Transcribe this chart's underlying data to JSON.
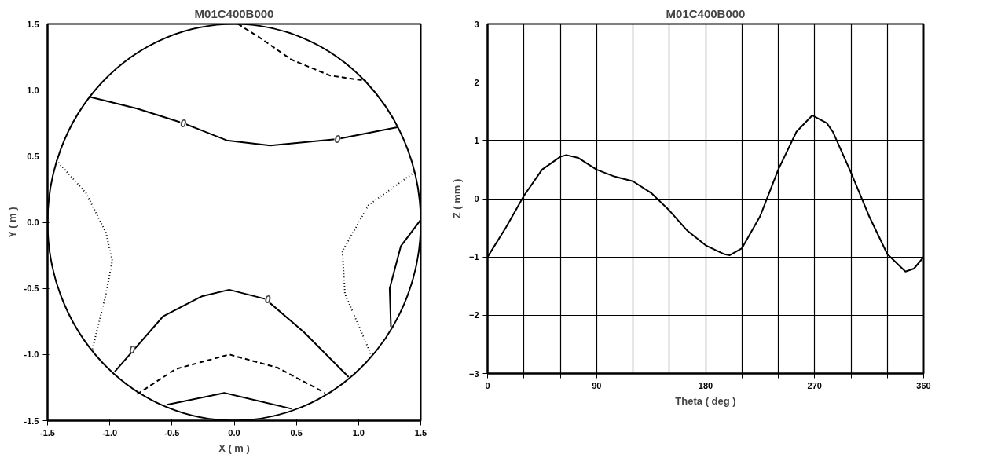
{
  "chart_data": [
    {
      "type": "line",
      "title": "M01C400B000",
      "xlabel": "X ( m )",
      "ylabel": "Y ( m )",
      "xlim": [
        -1.5,
        1.5
      ],
      "ylim": [
        -1.5,
        1.5
      ],
      "xticks": [
        {
          "value": -1.5,
          "label": "-1.5"
        },
        {
          "value": -1.0,
          "label": "-1.0"
        },
        {
          "value": -0.5,
          "label": "-0.5"
        },
        {
          "value": 0,
          "label": "0.0"
        },
        {
          "value": 0.5,
          "label": "0.5"
        },
        {
          "value": 1.0,
          "label": "1.0"
        },
        {
          "value": 1.5,
          "label": "1.5"
        }
      ],
      "yticks": [
        {
          "value": -1.5,
          "label": "-1.5"
        },
        {
          "value": -1.0,
          "label": "-1.0"
        },
        {
          "value": -0.5,
          "label": "-0.5"
        },
        {
          "value": 0,
          "label": "0.0"
        },
        {
          "value": 0.5,
          "label": "0.5"
        },
        {
          "value": 1.0,
          "label": "1.0"
        },
        {
          "value": 1.5,
          "label": "1.5"
        }
      ],
      "grid": false,
      "marker": "none",
      "series": [
        {
          "color": "#000000",
          "line_style": "dashed",
          "x": [
            0.03,
            0.2,
            0.46,
            0.77,
            1.06
          ],
          "values": [
            1.5,
            1.4,
            1.23,
            1.11,
            1.07
          ]
        },
        {
          "color": "#000000",
          "line_style": "solid",
          "x": [
            -1.17,
            -0.78,
            -0.41,
            -0.06,
            0.29,
            0.83,
            1.32
          ],
          "values": [
            0.95,
            0.86,
            0.75,
            0.62,
            0.58,
            0.63,
            0.72
          ]
        },
        {
          "color": "#000000",
          "line_style": "dotted",
          "x": [
            -1.43,
            -1.19,
            -1.03,
            -0.98,
            -1.03,
            -1.14
          ],
          "values": [
            0.47,
            0.22,
            -0.08,
            -0.29,
            -0.54,
            -0.96
          ]
        },
        {
          "color": "#000000",
          "line_style": "dotted",
          "x": [
            1.45,
            1.08,
            0.87,
            0.89,
            1.1
          ],
          "values": [
            0.38,
            0.13,
            -0.22,
            -0.54,
            -1.0
          ]
        },
        {
          "color": "#000000",
          "line_style": "solid",
          "x": [
            1.5,
            1.34,
            1.25,
            1.26
          ],
          "values": [
            0.02,
            -0.18,
            -0.5,
            -0.79
          ]
        },
        {
          "color": "#000000",
          "line_style": "solid",
          "x": [
            -0.96,
            -0.57,
            -0.26,
            -0.04,
            0.25,
            0.56,
            0.92
          ],
          "values": [
            -1.13,
            -0.71,
            -0.56,
            -0.51,
            -0.58,
            -0.83,
            -1.17
          ]
        },
        {
          "color": "#000000",
          "line_style": "dashed",
          "x": [
            -0.78,
            -0.47,
            -0.04,
            0.35,
            0.73
          ],
          "values": [
            -1.3,
            -1.11,
            -1.0,
            -1.1,
            -1.29
          ]
        },
        {
          "color": "#000000",
          "line_style": "solid",
          "x": [
            -0.54,
            -0.08,
            0.46
          ],
          "values": [
            -1.38,
            -1.29,
            -1.41
          ]
        }
      ],
      "annotations": [
        {
          "text": "0",
          "x": -0.41,
          "y": 0.75
        },
        {
          "text": "0",
          "x": 0.83,
          "y": 0.63
        },
        {
          "text": "0",
          "x": 0.27,
          "y": -0.58
        },
        {
          "text": "0",
          "x": -0.82,
          "y": -0.96
        }
      ]
    },
    {
      "type": "line",
      "title": "M01C400B000",
      "xlabel": "Theta ( deg )",
      "ylabel": "Z ( mm )",
      "xlim": [
        0,
        360
      ],
      "ylim": [
        -3,
        3
      ],
      "xticks": [
        0,
        {
          "value": 30,
          "label": null
        },
        {
          "value": 60,
          "label": null
        },
        90,
        {
          "value": 120,
          "label": null
        },
        {
          "value": 150,
          "label": null
        },
        180,
        {
          "value": 210,
          "label": null
        },
        {
          "value": 240,
          "label": null
        },
        270,
        {
          "value": 300,
          "label": null
        },
        {
          "value": 330,
          "label": null
        },
        360
      ],
      "yticks": [
        -3,
        -2,
        -1,
        0,
        1,
        2,
        3
      ],
      "grid": true,
      "marker": "none",
      "line_style": "solid",
      "series": [
        {
          "color": "#000000",
          "x": [
            0,
            15,
            30,
            45,
            60,
            65,
            75,
            90,
            105,
            120,
            135,
            150,
            165,
            180,
            195,
            200,
            210,
            225,
            240,
            255,
            268,
            280,
            285,
            300,
            315,
            330,
            345,
            352,
            360
          ],
          "values": [
            -1,
            -0.5,
            0.05,
            0.5,
            0.72,
            0.75,
            0.7,
            0.5,
            0.38,
            0.3,
            0.1,
            -0.2,
            -0.55,
            -0.8,
            -0.95,
            -0.97,
            -0.85,
            -0.3,
            0.5,
            1.15,
            1.43,
            1.3,
            1.15,
            0.45,
            -0.3,
            -0.95,
            -1.25,
            -1.2,
            -1.0
          ]
        }
      ]
    }
  ]
}
